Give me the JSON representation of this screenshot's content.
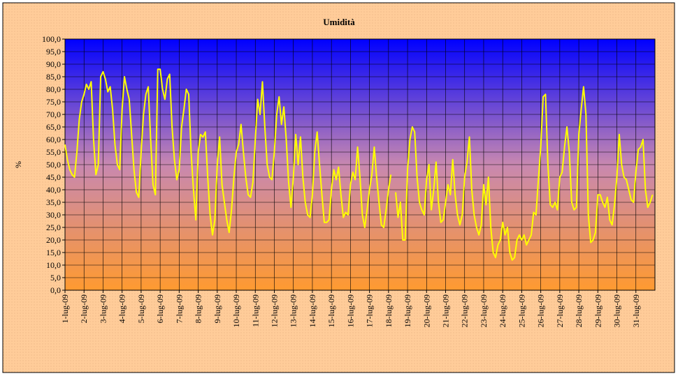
{
  "chart_data": {
    "type": "line",
    "title": "Umidità",
    "y_label": "%",
    "categories": [
      "1-lug-09",
      null,
      null,
      null,
      null,
      null,
      null,
      null,
      "2-lug-09",
      null,
      null,
      null,
      null,
      null,
      null,
      null,
      "3-lug-09",
      null,
      null,
      null,
      null,
      null,
      null,
      null,
      "4-lug-09",
      null,
      null,
      null,
      null,
      null,
      null,
      null,
      "5-lug-09",
      null,
      null,
      null,
      null,
      null,
      null,
      null,
      "6-lug-09",
      null,
      null,
      null,
      null,
      null,
      null,
      null,
      "7-lug-09",
      null,
      null,
      null,
      null,
      null,
      null,
      null,
      "8-lug-09",
      null,
      null,
      null,
      null,
      null,
      null,
      null,
      "9-lug-09",
      null,
      null,
      null,
      null,
      null,
      null,
      null,
      "10-lug-09",
      null,
      null,
      null,
      null,
      null,
      null,
      null,
      "11-lug-09",
      null,
      null,
      null,
      null,
      null,
      null,
      null,
      "12-lug-09",
      null,
      null,
      null,
      null,
      null,
      null,
      null,
      "13-lug-09",
      null,
      null,
      null,
      null,
      null,
      null,
      null,
      "14-lug-09",
      null,
      null,
      null,
      null,
      null,
      null,
      null,
      "15-lug-09",
      null,
      null,
      null,
      null,
      null,
      null,
      null,
      "16-lug-09",
      null,
      null,
      null,
      null,
      null,
      null,
      null,
      "17-lug-09",
      null,
      null,
      null,
      null,
      null,
      null,
      null,
      "18-lug-09",
      null,
      null,
      null,
      null,
      null,
      null,
      null,
      "19-lug-09",
      null,
      null,
      null,
      null,
      null,
      null,
      null,
      "20-lug-09",
      null,
      null,
      null,
      null,
      null,
      null,
      null,
      "21-lug-09",
      null,
      null,
      null,
      null,
      null,
      null,
      null,
      "22-lug-09",
      null,
      null,
      null,
      null,
      null,
      null,
      null,
      "23-lug-09",
      null,
      null,
      null,
      null,
      null,
      null,
      null,
      "24-lug-09",
      null,
      null,
      null,
      null,
      null,
      null,
      null,
      "25-lug-09",
      null,
      null,
      null,
      null,
      null,
      null,
      null,
      "26-lug-09",
      null,
      null,
      null,
      null,
      null,
      null,
      null,
      "27-lug-09",
      null,
      null,
      null,
      null,
      null,
      null,
      null,
      "28-lug-09",
      null,
      null,
      null,
      null,
      null,
      null,
      null,
      "29-lug-09",
      null,
      null,
      null,
      null,
      null,
      null,
      null,
      "30-lug-09",
      null,
      null,
      null,
      null,
      null,
      null,
      null,
      "31-lug-09",
      null,
      null,
      null,
      null,
      null,
      null,
      null
    ],
    "values": [
      58,
      52,
      48,
      46,
      45,
      55,
      68,
      75,
      78,
      82,
      80,
      83,
      60,
      46,
      50,
      85,
      87,
      84,
      79,
      81,
      72,
      58,
      50,
      48,
      72,
      85,
      80,
      76,
      62,
      48,
      39,
      37,
      55,
      70,
      78,
      81,
      60,
      42,
      38,
      88,
      88,
      80,
      76,
      84,
      86,
      65,
      52,
      44,
      48,
      65,
      72,
      80,
      78,
      55,
      40,
      28,
      55,
      62,
      61,
      63,
      45,
      30,
      22,
      28,
      50,
      61,
      42,
      35,
      28,
      23,
      32,
      45,
      55,
      58,
      66,
      55,
      45,
      38,
      37,
      43,
      60,
      76,
      70,
      83,
      65,
      50,
      45,
      44,
      55,
      70,
      77,
      66,
      73,
      60,
      43,
      33,
      45,
      62,
      50,
      61,
      45,
      35,
      30,
      29,
      38,
      55,
      63,
      50,
      38,
      27,
      27,
      28,
      40,
      48,
      44,
      49,
      38,
      29,
      31,
      30,
      42,
      47,
      44,
      57,
      45,
      30,
      25,
      32,
      40,
      46,
      57,
      45,
      35,
      26,
      25,
      32,
      40,
      46,
      null,
      39,
      29,
      35,
      20,
      20,
      48,
      60,
      65,
      63,
      45,
      35,
      32,
      30,
      44,
      50,
      32,
      40,
      51,
      35,
      27,
      28,
      35,
      42,
      38,
      52,
      38,
      30,
      26,
      30,
      45,
      51,
      61,
      40,
      30,
      25,
      22,
      26,
      42,
      34,
      45,
      25,
      15,
      13,
      18,
      20,
      27,
      22,
      25,
      15,
      12,
      13,
      20,
      22,
      20,
      22,
      18,
      20,
      22,
      31,
      30,
      44,
      57,
      77,
      78,
      50,
      34,
      33,
      35,
      32,
      45,
      47,
      57,
      65,
      55,
      35,
      32,
      33,
      62,
      72,
      81,
      70,
      30,
      19,
      20,
      23,
      38,
      38,
      35,
      33,
      37,
      28,
      26,
      34,
      45,
      62,
      50,
      45,
      44,
      40,
      36,
      35,
      47,
      56,
      57,
      60,
      40,
      33,
      35,
      38
    ],
    "color": "#ffff00",
    "ylim": [
      0,
      100
    ],
    "yticks": [
      {
        "value": 0,
        "label": "0,0"
      },
      {
        "value": 5,
        "label": "5,0"
      },
      {
        "value": 10,
        "label": "10,0"
      },
      {
        "value": 15,
        "label": "15,0"
      },
      {
        "value": 20,
        "label": "20,0"
      },
      {
        "value": 25,
        "label": "25,0"
      },
      {
        "value": 30,
        "label": "30,0"
      },
      {
        "value": 35,
        "label": "35,0"
      },
      {
        "value": 40,
        "label": "40,0"
      },
      {
        "value": 45,
        "label": "45,0"
      },
      {
        "value": 50,
        "label": "50,0"
      },
      {
        "value": 55,
        "label": "55,0"
      },
      {
        "value": 60,
        "label": "60,0"
      },
      {
        "value": 65,
        "label": "65,0"
      },
      {
        "value": 70,
        "label": "70,0"
      },
      {
        "value": 75,
        "label": "75,0"
      },
      {
        "value": 80,
        "label": "80,0"
      },
      {
        "value": 85,
        "label": "85,0"
      },
      {
        "value": 90,
        "label": "90,0"
      },
      {
        "value": 95,
        "label": "95,0"
      },
      {
        "value": 100,
        "label": "100,0"
      }
    ],
    "grid": true
  }
}
